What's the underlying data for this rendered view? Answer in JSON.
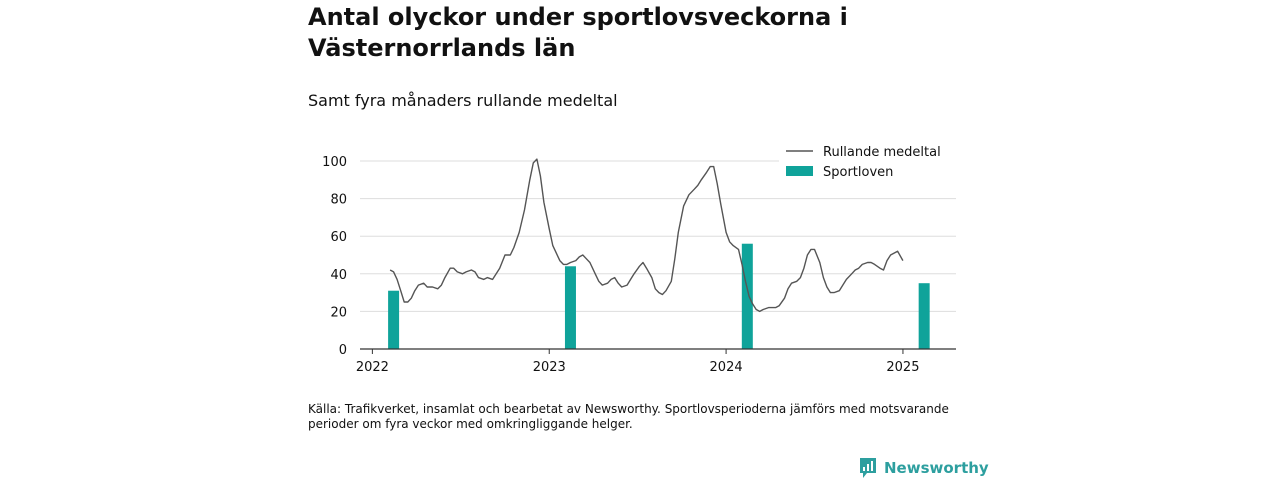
{
  "title": "Antal olyckor under sportlovsveckorna i Västernorrlands län",
  "subtitle": "Samt fyra månaders rullande medeltal",
  "source": "Källa: Trafikverket, insamlat och bearbetat av Newsworthy. Sportlovsperioderna jämförs med motsvarande perioder om fyra veckor med omkringliggande helger.",
  "brand": "Newsworthy",
  "colors": {
    "bar": "#0fa39a",
    "line": "#555555",
    "grid": "#dddddd",
    "axis": "#333333",
    "brand": "#2d9f9f"
  },
  "chart_data": {
    "type": "bar+line",
    "title": "Antal olyckor under sportlovsveckorna i Västernorrlands län",
    "subtitle": "Samt fyra månaders rullande medeltal",
    "xlabel": "",
    "ylabel": "",
    "xlim": [
      2021.93,
      2025.3
    ],
    "ylim": [
      0,
      100
    ],
    "x_ticks": [
      "2022",
      "2023",
      "2024",
      "2025"
    ],
    "y_ticks": [
      0,
      20,
      40,
      60,
      80,
      100
    ],
    "grid": true,
    "legend": {
      "position": "top-right",
      "entries": [
        "Rullande medeltal",
        "Sportloven"
      ]
    },
    "series": [
      {
        "name": "Rullande medeltal",
        "kind": "line",
        "points": [
          [
            2022.1,
            42
          ],
          [
            2022.12,
            41
          ],
          [
            2022.14,
            37
          ],
          [
            2022.16,
            31
          ],
          [
            2022.18,
            25
          ],
          [
            2022.2,
            25
          ],
          [
            2022.22,
            27
          ],
          [
            2022.24,
            31
          ],
          [
            2022.26,
            34
          ],
          [
            2022.29,
            35
          ],
          [
            2022.31,
            33
          ],
          [
            2022.34,
            33
          ],
          [
            2022.37,
            32
          ],
          [
            2022.39,
            34
          ],
          [
            2022.41,
            38
          ],
          [
            2022.44,
            43
          ],
          [
            2022.46,
            43
          ],
          [
            2022.48,
            41
          ],
          [
            2022.51,
            40
          ],
          [
            2022.53,
            41
          ],
          [
            2022.56,
            42
          ],
          [
            2022.58,
            41
          ],
          [
            2022.6,
            38
          ],
          [
            2022.63,
            37
          ],
          [
            2022.65,
            38
          ],
          [
            2022.68,
            37
          ],
          [
            2022.7,
            40
          ],
          [
            2022.72,
            43
          ],
          [
            2022.75,
            50
          ],
          [
            2022.78,
            50
          ],
          [
            2022.8,
            54
          ],
          [
            2022.83,
            62
          ],
          [
            2022.86,
            74
          ],
          [
            2022.89,
            90
          ],
          [
            2022.91,
            99
          ],
          [
            2022.93,
            101
          ],
          [
            2022.95,
            92
          ],
          [
            2022.97,
            78
          ],
          [
            2023.0,
            64
          ],
          [
            2023.02,
            55
          ],
          [
            2023.04,
            51
          ],
          [
            2023.06,
            47
          ],
          [
            2023.08,
            45
          ],
          [
            2023.1,
            45
          ],
          [
            2023.12,
            46
          ],
          [
            2023.15,
            47
          ],
          [
            2023.17,
            49
          ],
          [
            2023.19,
            50
          ],
          [
            2023.21,
            48
          ],
          [
            2023.23,
            46
          ],
          [
            2023.26,
            40
          ],
          [
            2023.28,
            36
          ],
          [
            2023.3,
            34
          ],
          [
            2023.33,
            35
          ],
          [
            2023.35,
            37
          ],
          [
            2023.37,
            38
          ],
          [
            2023.39,
            35
          ],
          [
            2023.41,
            33
          ],
          [
            2023.44,
            34
          ],
          [
            2023.46,
            37
          ],
          [
            2023.48,
            40
          ],
          [
            2023.51,
            44
          ],
          [
            2023.53,
            46
          ],
          [
            2023.55,
            43
          ],
          [
            2023.58,
            38
          ],
          [
            2023.6,
            32
          ],
          [
            2023.62,
            30
          ],
          [
            2023.64,
            29
          ],
          [
            2023.66,
            31
          ],
          [
            2023.69,
            36
          ],
          [
            2023.71,
            48
          ],
          [
            2023.73,
            62
          ],
          [
            2023.76,
            76
          ],
          [
            2023.79,
            82
          ],
          [
            2023.82,
            85
          ],
          [
            2023.84,
            87
          ],
          [
            2023.86,
            90
          ],
          [
            2023.89,
            94
          ],
          [
            2023.91,
            97
          ],
          [
            2023.93,
            97
          ],
          [
            2023.95,
            88
          ],
          [
            2023.97,
            77
          ],
          [
            2024.0,
            62
          ],
          [
            2024.02,
            57
          ],
          [
            2024.04,
            55
          ],
          [
            2024.07,
            53
          ],
          [
            2024.09,
            45
          ],
          [
            2024.11,
            36
          ],
          [
            2024.13,
            28
          ],
          [
            2024.15,
            24
          ],
          [
            2024.17,
            21
          ],
          [
            2024.19,
            20
          ],
          [
            2024.21,
            21
          ],
          [
            2024.24,
            22
          ],
          [
            2024.26,
            22
          ],
          [
            2024.28,
            22
          ],
          [
            2024.3,
            23
          ],
          [
            2024.33,
            27
          ],
          [
            2024.35,
            32
          ],
          [
            2024.37,
            35
          ],
          [
            2024.4,
            36
          ],
          [
            2024.42,
            38
          ],
          [
            2024.44,
            43
          ],
          [
            2024.46,
            50
          ],
          [
            2024.48,
            53
          ],
          [
            2024.5,
            53
          ],
          [
            2024.53,
            46
          ],
          [
            2024.55,
            38
          ],
          [
            2024.57,
            33
          ],
          [
            2024.59,
            30
          ],
          [
            2024.61,
            30
          ],
          [
            2024.64,
            31
          ],
          [
            2024.66,
            34
          ],
          [
            2024.68,
            37
          ],
          [
            2024.71,
            40
          ],
          [
            2024.73,
            42
          ],
          [
            2024.75,
            43
          ],
          [
            2024.77,
            45
          ],
          [
            2024.8,
            46
          ],
          [
            2024.82,
            46
          ],
          [
            2024.84,
            45
          ],
          [
            2024.87,
            43
          ],
          [
            2024.89,
            42
          ],
          [
            2024.91,
            47
          ],
          [
            2024.93,
            50
          ],
          [
            2024.95,
            51
          ],
          [
            2024.97,
            52
          ],
          [
            2025.0,
            47
          ]
        ]
      },
      {
        "name": "Sportloven",
        "kind": "bar",
        "categories": [
          "2022",
          "2023",
          "2024",
          "2025"
        ],
        "x": [
          2022.12,
          2023.12,
          2024.12,
          2025.12
        ],
        "values": [
          31,
          44,
          56,
          35
        ]
      }
    ]
  }
}
